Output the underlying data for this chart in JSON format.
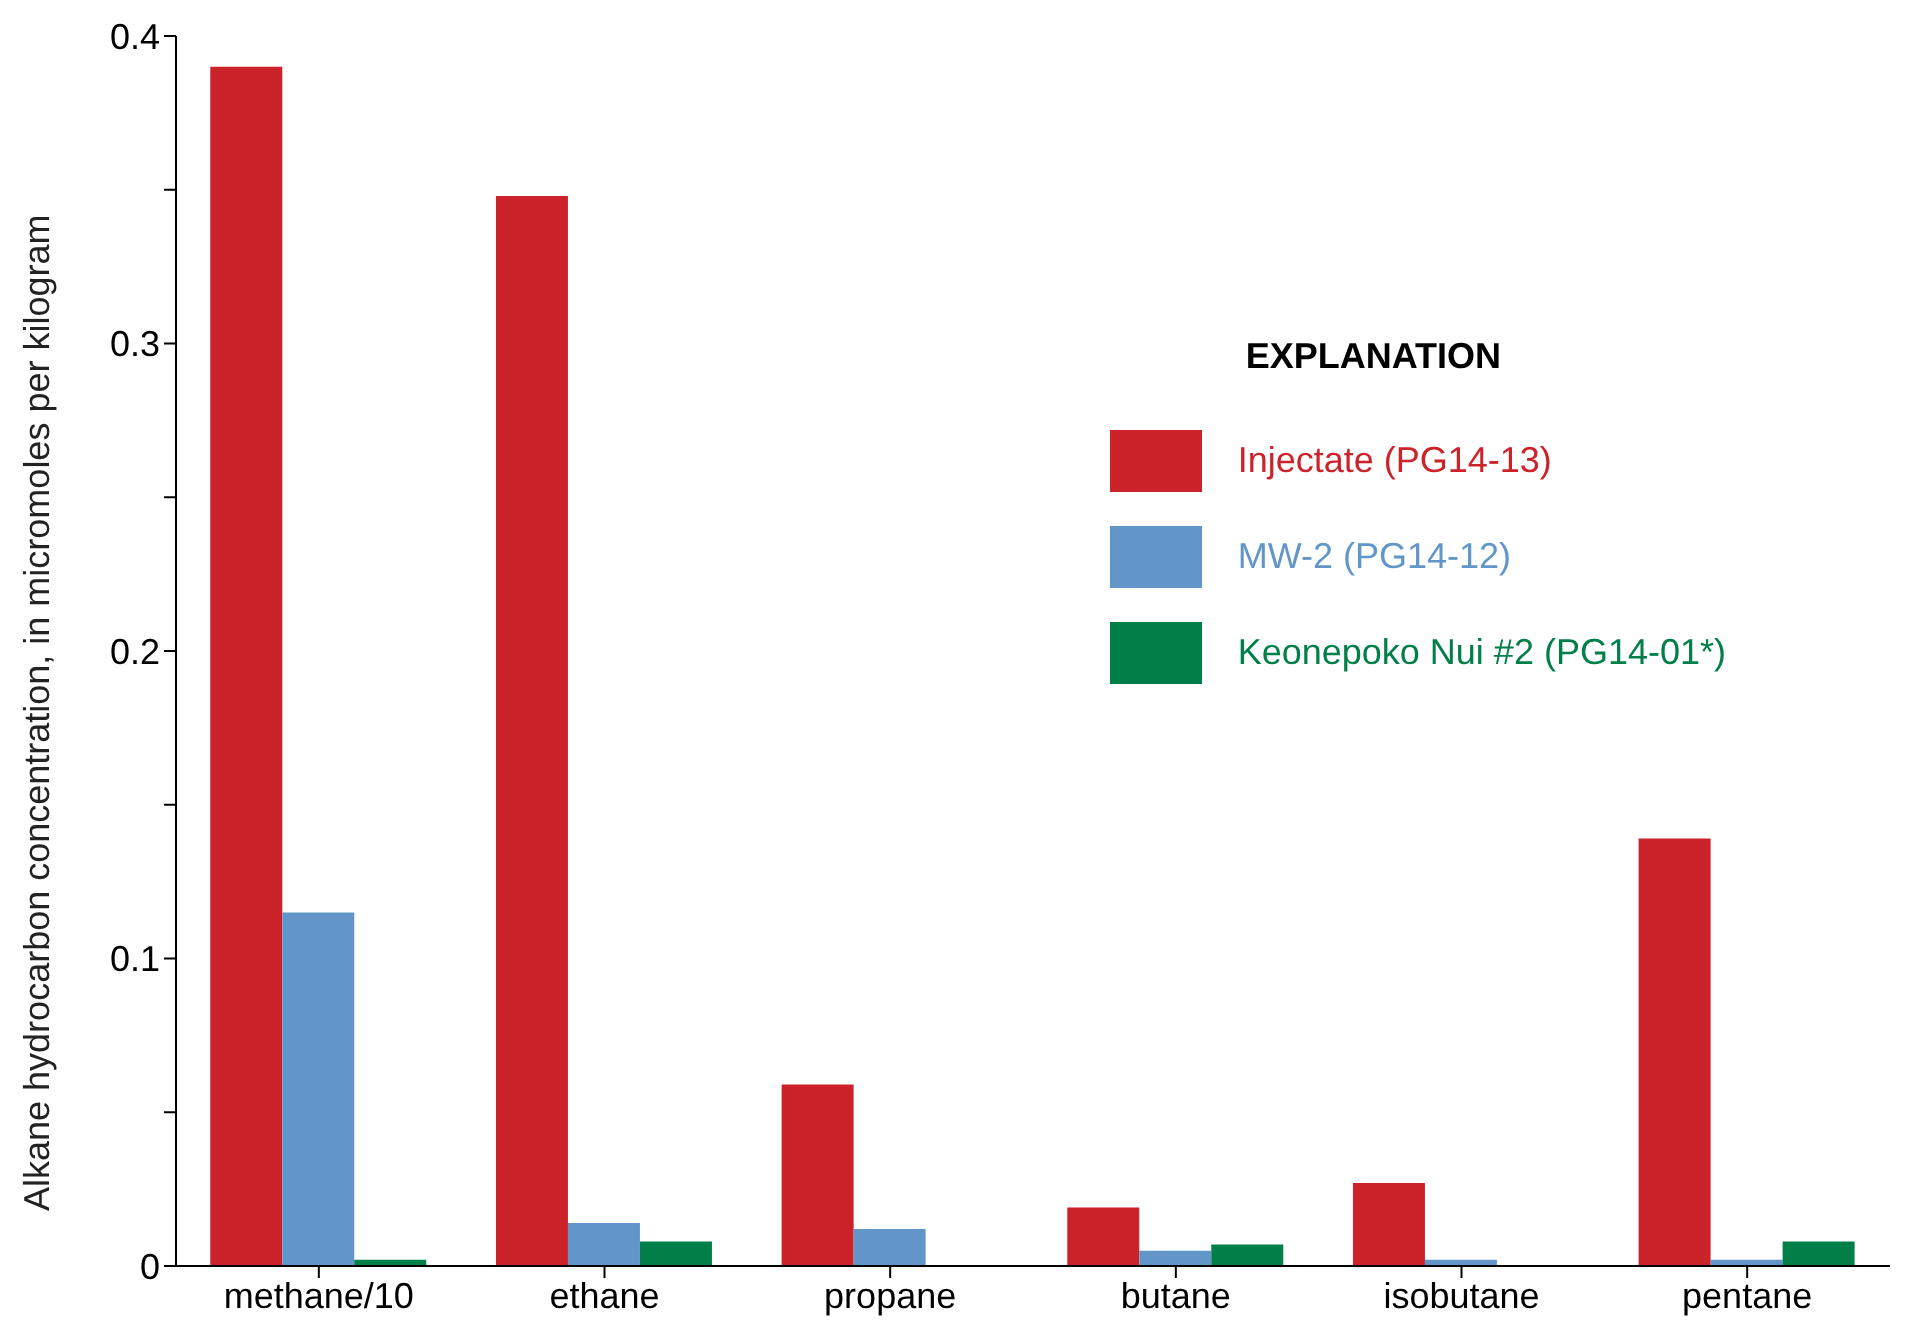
{
  "chart_data": {
    "type": "bar",
    "ylabel": "Alkane hydrocarbon concentration, in micromoles per kilogram",
    "legend_title": "EXPLANATION",
    "categories": [
      "methane/10",
      "ethane",
      "propane",
      "butane",
      "isobutane",
      "pentane"
    ],
    "series": [
      {
        "name": "Injectate (PG14-13)",
        "color": "#cc2229",
        "values": [
          0.39,
          0.348,
          0.059,
          0.019,
          0.027,
          0.139
        ]
      },
      {
        "name": "MW-2 (PG14-12)",
        "color": "#6296c9",
        "values": [
          0.115,
          0.014,
          0.012,
          0.005,
          0.002,
          0.002
        ]
      },
      {
        "name": "Keonepoko Nui #2 (PG14-01*)",
        "color": "#007f48",
        "values": [
          0.002,
          0.008,
          null,
          0.007,
          null,
          0.008
        ]
      }
    ],
    "ylim": [
      0,
      0.4
    ],
    "yticks": [
      0,
      {
        "value": 0.05,
        "label": null
      },
      0.1,
      {
        "value": 0.15,
        "label": null
      },
      0.2,
      {
        "value": 0.25,
        "label": null
      },
      0.3,
      {
        "value": 0.35,
        "label": null
      },
      0.4
    ],
    "grid": false,
    "legend": "top right"
  }
}
